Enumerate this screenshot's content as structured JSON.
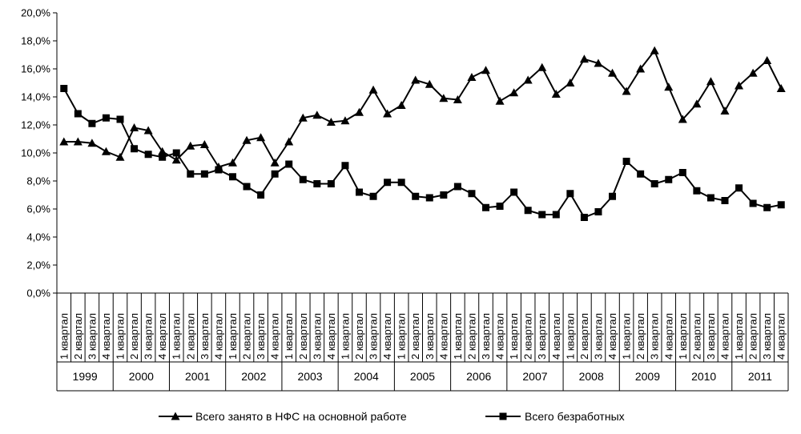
{
  "chart_data": {
    "type": "line",
    "years": [
      "1999",
      "2000",
      "2001",
      "2002",
      "2003",
      "2004",
      "2005",
      "2006",
      "2007",
      "2008",
      "2009",
      "2010",
      "2011"
    ],
    "quarters": [
      "1 квартал",
      "2 квартал",
      "3 квартал",
      "4 квартал"
    ],
    "yticks": [
      "0,0%",
      "2,0%",
      "4,0%",
      "6,0%",
      "8,0%",
      "10,0%",
      "12,0%",
      "14,0%",
      "16,0%",
      "18,0%",
      "20,0%"
    ],
    "ylim": [
      0,
      20
    ],
    "grid": false,
    "legend_position": "bottom",
    "series": [
      {
        "name": "Всего занято в НФС на основной работе",
        "marker": "triangle",
        "values": [
          10.8,
          10.8,
          10.7,
          10.1,
          9.7,
          11.8,
          11.6,
          10.1,
          9.5,
          10.5,
          10.6,
          9.0,
          9.3,
          10.9,
          11.1,
          9.3,
          10.8,
          12.5,
          12.7,
          12.2,
          12.3,
          12.9,
          14.5,
          12.8,
          13.4,
          15.2,
          14.9,
          13.9,
          13.8,
          15.4,
          15.9,
          13.7,
          14.3,
          15.2,
          16.1,
          14.2,
          15.0,
          16.7,
          16.4,
          15.7,
          14.4,
          16.0,
          17.3,
          14.7,
          12.4,
          13.5,
          15.1,
          13.0,
          14.8,
          15.7,
          16.6,
          14.6
        ]
      },
      {
        "name": "Всего безработных",
        "marker": "square",
        "values": [
          14.6,
          12.8,
          12.1,
          12.5,
          12.4,
          10.3,
          9.9,
          9.7,
          10.0,
          8.5,
          8.5,
          8.8,
          8.3,
          7.6,
          7.0,
          8.5,
          9.2,
          8.1,
          7.8,
          7.8,
          9.1,
          7.2,
          6.9,
          7.9,
          7.9,
          6.9,
          6.8,
          7.0,
          7.6,
          7.1,
          6.1,
          6.2,
          7.2,
          5.9,
          5.6,
          5.6,
          7.1,
          5.4,
          5.8,
          6.9,
          9.4,
          8.5,
          7.8,
          8.1,
          8.6,
          7.3,
          6.8,
          6.6,
          7.5,
          6.4,
          6.1,
          6.3
        ]
      }
    ]
  }
}
